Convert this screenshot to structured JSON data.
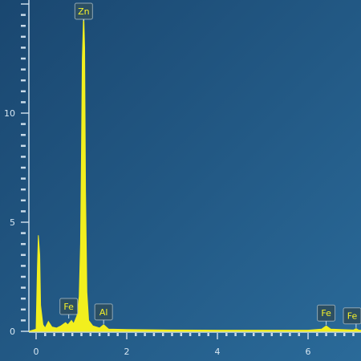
{
  "chart_data": {
    "type": "area",
    "title": "",
    "xlabel": "",
    "ylabel": "",
    "xlim": [
      -0.4,
      7.3
    ],
    "ylim": [
      0,
      15
    ],
    "x_ticks": [
      0,
      2,
      4,
      6
    ],
    "y_ticks": [
      0,
      5,
      10
    ],
    "grid": false,
    "series": [
      {
        "color": "#f2ef1e",
        "points": [
          [
            -0.4,
            0
          ],
          [
            0.0,
            0.1
          ],
          [
            0.03,
            3.0
          ],
          [
            0.05,
            4.4
          ],
          [
            0.08,
            3.5
          ],
          [
            0.1,
            1.2
          ],
          [
            0.15,
            0.3
          ],
          [
            0.2,
            0.15
          ],
          [
            0.27,
            0.45
          ],
          [
            0.35,
            0.2
          ],
          [
            0.45,
            0.15
          ],
          [
            0.55,
            0.25
          ],
          [
            0.65,
            0.4
          ],
          [
            0.7,
            0.3
          ],
          [
            0.78,
            0.5
          ],
          [
            0.83,
            0.35
          ],
          [
            0.9,
            0.7
          ],
          [
            0.95,
            1.6
          ],
          [
            0.98,
            4.0
          ],
          [
            1.0,
            8.0
          ],
          [
            1.02,
            12.5
          ],
          [
            1.05,
            14.6
          ],
          [
            1.07,
            13.0
          ],
          [
            1.09,
            6.5
          ],
          [
            1.12,
            1.8
          ],
          [
            1.16,
            0.5
          ],
          [
            1.25,
            0.25
          ],
          [
            1.4,
            0.15
          ],
          [
            1.49,
            0.3
          ],
          [
            1.6,
            0.1
          ],
          [
            2.0,
            0.08
          ],
          [
            3.0,
            0.06
          ],
          [
            4.0,
            0.05
          ],
          [
            5.0,
            0.05
          ],
          [
            6.0,
            0.05
          ],
          [
            6.3,
            0.1
          ],
          [
            6.4,
            0.25
          ],
          [
            6.5,
            0.1
          ],
          [
            7.0,
            0.06
          ],
          [
            7.06,
            0.12
          ],
          [
            7.12,
            0.05
          ],
          [
            7.3,
            0.04
          ]
        ]
      }
    ],
    "peak_labels": [
      {
        "text": "Zn",
        "x": 1.05,
        "y": 14.6
      },
      {
        "text": "Fe",
        "x": 0.72,
        "y": 0.55
      },
      {
        "text": "Al",
        "x": 1.49,
        "y": 0.3
      },
      {
        "text": "Fe",
        "x": 6.4,
        "y": 0.25
      },
      {
        "text": "Fe",
        "x": 7.06,
        "y": 0.12
      }
    ]
  }
}
